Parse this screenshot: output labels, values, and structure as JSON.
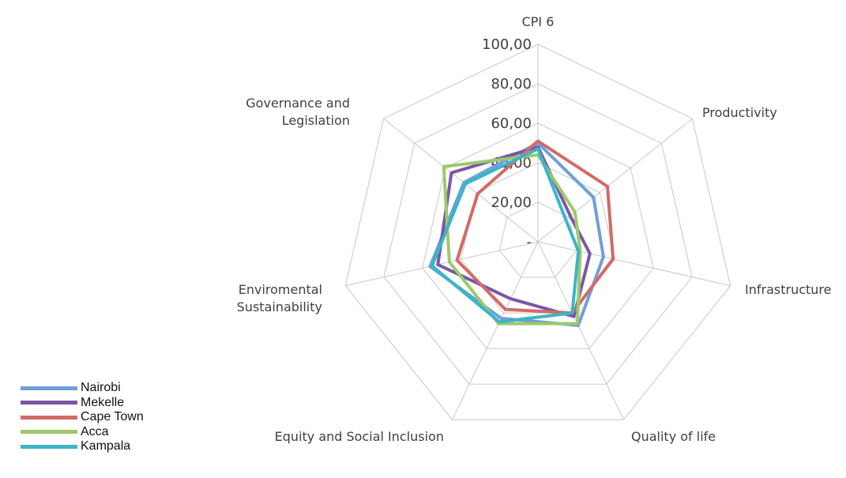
{
  "chart_data": {
    "type": "radar",
    "axes": [
      "CPI 6",
      "Productivity",
      "Infrastructure",
      "Quality of life",
      "Equity and Social Inclusion",
      "Enviromental Sustainability",
      "Governance and Legislation"
    ],
    "axis_label_lines": [
      [
        "CPI 6"
      ],
      [
        "Productivity"
      ],
      [
        "Infrastructure"
      ],
      [
        "Quality of life"
      ],
      [
        "Equity and Social Inclusion"
      ],
      [
        "Enviromental",
        "Sustainability"
      ],
      [
        "Governance and",
        "Legislation"
      ]
    ],
    "ticks": [
      "-",
      "20,00",
      "40,00",
      "60,00",
      "80,00",
      "100,00"
    ],
    "tick_values": [
      0,
      20,
      40,
      60,
      80,
      100
    ],
    "rlim": [
      0,
      100
    ],
    "grid": true,
    "legend_position": "bottom-left",
    "series": [
      {
        "name": "Nairobi",
        "color": "#6f9fd8",
        "values": [
          50,
          36,
          34,
          47,
          43,
          56,
          48
        ]
      },
      {
        "name": "Mekelle",
        "color": "#7a56a8",
        "values": [
          48,
          21,
          27,
          42,
          32,
          52,
          56
        ]
      },
      {
        "name": "Cape Town",
        "color": "#d26a66",
        "values": [
          51,
          45,
          39,
          40,
          38,
          42,
          39
        ]
      },
      {
        "name": "Acca",
        "color": "#9cc96a",
        "values": [
          44,
          24,
          22,
          46,
          46,
          46,
          61
        ]
      },
      {
        "name": "Kampala",
        "color": "#3bb5c8",
        "values": [
          47,
          18,
          21,
          40,
          45,
          55,
          47
        ]
      }
    ]
  }
}
